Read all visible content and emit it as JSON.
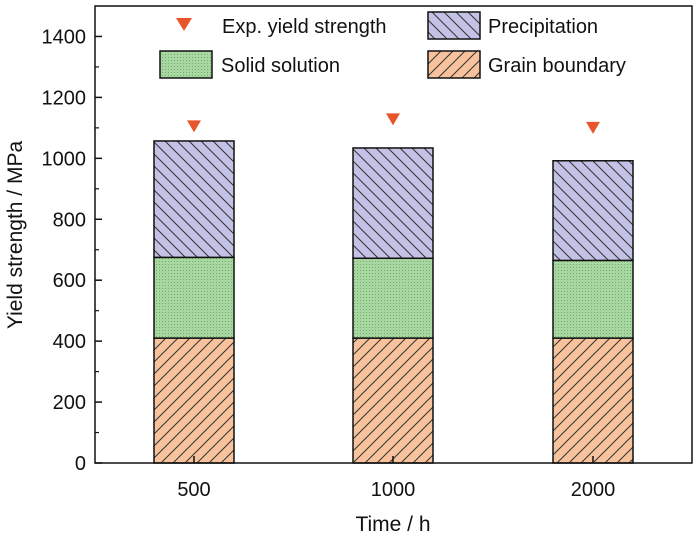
{
  "chart_data": {
    "type": "bar",
    "stacked": true,
    "categories": [
      "500",
      "1000",
      "2000"
    ],
    "xlabel": "Time / h",
    "ylabel": "Yield strength / MPa",
    "ylim": [
      0,
      1500
    ],
    "yticks": [
      "0",
      "200",
      "400",
      "600",
      "800",
      "1000",
      "1200",
      "1400"
    ],
    "series": [
      {
        "name": "Grain boundary",
        "values": [
          410,
          410,
          410
        ],
        "color": "#f8c39c",
        "pattern": "hatch-forward"
      },
      {
        "name": "Solid solution",
        "values": [
          265,
          262,
          255
        ],
        "color": "#a8d7a2",
        "pattern": "dots"
      },
      {
        "name": "Precipitation",
        "values": [
          382,
          362,
          327
        ],
        "color": "#c3c2e6",
        "pattern": "hatch-back"
      }
    ],
    "markers": {
      "name": "Exp. yield strength",
      "shape": "triangle-down",
      "color": "#e8552a",
      "values": [
        1105,
        1128,
        1100
      ]
    },
    "legend_placement": "top, inside plot",
    "grid": false
  }
}
